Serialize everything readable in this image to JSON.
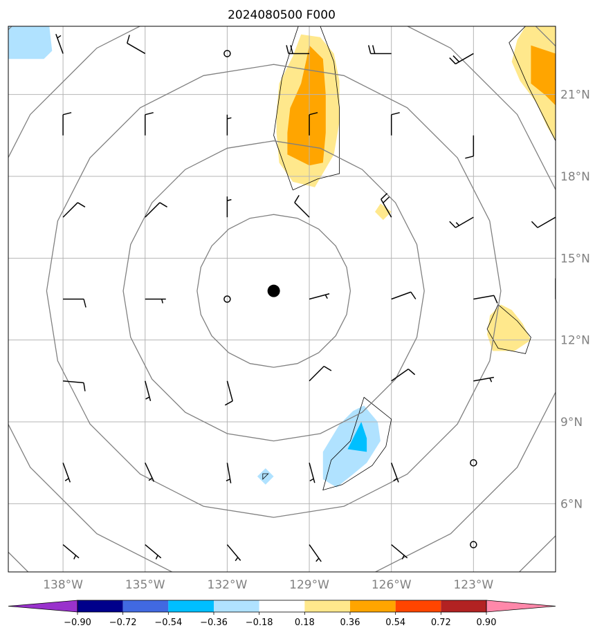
{
  "chart_data": {
    "type": "contour_map",
    "title": "2024080500 F000",
    "map": {
      "lon_range": [
        -140.0,
        -120.0
      ],
      "lat_range": [
        3.5,
        23.5
      ],
      "gridlines": true,
      "lon_ticks": [
        {
          "value": -138,
          "label": "138°W"
        },
        {
          "value": -135,
          "label": "135°W"
        },
        {
          "value": -132,
          "label": "132°W"
        },
        {
          "value": -129,
          "label": "129°W"
        },
        {
          "value": -126,
          "label": "126°W"
        },
        {
          "value": -123,
          "label": "123°W"
        }
      ],
      "lat_ticks": [
        {
          "value": 21,
          "label": "21°N"
        },
        {
          "value": 18,
          "label": "18°N"
        },
        {
          "value": 15,
          "label": "15°N"
        },
        {
          "value": 12,
          "label": "12°N"
        },
        {
          "value": 9,
          "label": "9°N"
        },
        {
          "value": 6,
          "label": "6°N"
        }
      ]
    },
    "center_marker": {
      "lon": -130.3,
      "lat": 13.8
    },
    "range_rings": {
      "center_lon": -130.3,
      "center_lat": 13.8,
      "radii_deg": [
        2.8,
        5.5,
        8.3,
        11.0,
        13.8
      ],
      "color": "#808080"
    },
    "colorbar": {
      "levels": [
        -0.9,
        -0.72,
        -0.54,
        -0.36,
        -0.18,
        0.18,
        0.36,
        0.54,
        0.72,
        0.9
      ],
      "tick_labels": [
        "−0.90",
        "−0.72",
        "−0.54",
        "−0.36",
        "−0.18",
        "0.18",
        "0.36",
        "0.54",
        "0.72",
        "0.90"
      ],
      "colors": [
        "#9932cc",
        "#00008b",
        "#4169e1",
        "#00bfff",
        "#b0e2ff",
        "#ffffff",
        "#ffe88c",
        "#ffa500",
        "#ff4500",
        "#b22222",
        "#ff88aa"
      ],
      "extend": "both"
    },
    "filled_regions": [
      {
        "color": "#b0e2ff",
        "points": [
          [
            -140,
            23.5
          ],
          [
            -138.5,
            23.5
          ],
          [
            -138.4,
            22.6
          ],
          [
            -138.7,
            22.3
          ],
          [
            -140,
            22.3
          ]
        ]
      },
      {
        "color": "#ffe88c",
        "points": [
          [
            -129.3,
            23.2
          ],
          [
            -128.6,
            23.1
          ],
          [
            -128.1,
            22.5
          ],
          [
            -127.9,
            21.5
          ],
          [
            -127.9,
            20
          ],
          [
            -128.1,
            18.8
          ],
          [
            -128.8,
            17.6
          ],
          [
            -129.6,
            17.8
          ],
          [
            -130.1,
            18.5
          ],
          [
            -130.2,
            19.6
          ],
          [
            -130.2,
            20.3
          ],
          [
            -130.1,
            21.4
          ],
          [
            -129.6,
            22.4
          ]
        ]
      },
      {
        "color": "#ffa500",
        "points": [
          [
            -129,
            22.8
          ],
          [
            -128.5,
            22.3
          ],
          [
            -128.4,
            21
          ],
          [
            -128.4,
            19.6
          ],
          [
            -128.5,
            18.5
          ],
          [
            -129,
            18.4
          ],
          [
            -129.8,
            18.8
          ],
          [
            -129.8,
            19.6
          ],
          [
            -129.7,
            20.5
          ],
          [
            -129.3,
            21.4
          ],
          [
            -129.1,
            22.3
          ]
        ]
      },
      {
        "color": "#ffe88c",
        "points": [
          [
            -121.1,
            23.5
          ],
          [
            -120,
            23.5
          ],
          [
            -120,
            19.3
          ],
          [
            -120.3,
            19.8
          ],
          [
            -120.7,
            20.7
          ],
          [
            -121.3,
            21.5
          ],
          [
            -121.6,
            22.2
          ],
          [
            -121.4,
            23
          ]
        ]
      },
      {
        "color": "#ffa500",
        "points": [
          [
            -120.9,
            22.8
          ],
          [
            -120,
            22.5
          ],
          [
            -120,
            20.6
          ],
          [
            -120.4,
            21
          ],
          [
            -120.9,
            21.4
          ]
        ]
      },
      {
        "color": "#ffe88c",
        "points": [
          [
            -126.4,
            17
          ],
          [
            -126,
            16.7
          ],
          [
            -126.3,
            16.4
          ],
          [
            -126.6,
            16.7
          ]
        ]
      },
      {
        "color": "#ffe88c",
        "points": [
          [
            -122,
            13.3
          ],
          [
            -121.6,
            13.1
          ],
          [
            -121.2,
            12.6
          ],
          [
            -120.9,
            12
          ],
          [
            -121.5,
            11.6
          ],
          [
            -122.3,
            11.6
          ],
          [
            -122.5,
            12.2
          ],
          [
            -122.4,
            12.9
          ]
        ]
      },
      {
        "color": "#b0e2ff",
        "points": [
          [
            -127,
            9.6
          ],
          [
            -126.5,
            9
          ],
          [
            -126.4,
            8.3
          ],
          [
            -126.9,
            7.5
          ],
          [
            -127.5,
            7
          ],
          [
            -128,
            6.6
          ],
          [
            -128.5,
            6.9
          ],
          [
            -128.5,
            7.9
          ],
          [
            -127.9,
            8.9
          ],
          [
            -127.4,
            9.4
          ]
        ]
      },
      {
        "color": "#00bfff",
        "points": [
          [
            -127.1,
            9
          ],
          [
            -126.9,
            8.4
          ],
          [
            -126.9,
            7.9
          ],
          [
            -127.6,
            8
          ]
        ]
      },
      {
        "color": "#b0e2ff",
        "points": [
          [
            -130.6,
            7.3
          ],
          [
            -130.3,
            7
          ],
          [
            -130.6,
            6.7
          ],
          [
            -130.9,
            7
          ]
        ]
      }
    ],
    "outline_regions": [
      {
        "points": [
          [
            -129.4,
            23.5
          ],
          [
            -128.6,
            23.5
          ],
          [
            -128.1,
            22.2
          ],
          [
            -127.9,
            20.5
          ],
          [
            -127.9,
            18.1
          ],
          [
            -128.7,
            17.9
          ],
          [
            -129.6,
            17.5
          ],
          [
            -130.3,
            19.5
          ],
          [
            -130,
            21.6
          ],
          [
            -129.6,
            22.9
          ]
        ]
      },
      {
        "points": [
          [
            -121.1,
            23.5
          ],
          [
            -120,
            23.5
          ],
          [
            -120,
            19.3
          ],
          [
            -121,
            21.3
          ],
          [
            -121.7,
            22.9
          ]
        ]
      },
      {
        "points": [
          [
            -122.1,
            13.3
          ],
          [
            -121.4,
            12.7
          ],
          [
            -120.9,
            12.1
          ],
          [
            -121.1,
            11.5
          ],
          [
            -122.1,
            11.7
          ],
          [
            -122.5,
            12.4
          ]
        ]
      },
      {
        "points": [
          [
            -127,
            9.9
          ],
          [
            -126,
            9.1
          ],
          [
            -126.2,
            8.1
          ],
          [
            -126.7,
            7.4
          ],
          [
            -127.8,
            6.7
          ],
          [
            -128.5,
            6.5
          ],
          [
            -128.2,
            7.6
          ],
          [
            -127.5,
            8.3
          ]
        ]
      },
      {
        "points": [
          [
            -130.7,
            7.1
          ],
          [
            -130.5,
            7.1
          ],
          [
            -130.7,
            6.9
          ]
        ]
      }
    ],
    "wind_barbs": [
      {
        "lon": -138,
        "lat": 22.5,
        "dir": 340,
        "speed": 5
      },
      {
        "lon": -135,
        "lat": 22.5,
        "dir": 300,
        "speed": 10
      },
      {
        "lon": -132,
        "lat": 22.5,
        "dir": null,
        "speed": 0
      },
      {
        "lon": -129,
        "lat": 22.5,
        "dir": 270,
        "speed": 20
      },
      {
        "lon": -126,
        "lat": 22.5,
        "dir": 270,
        "speed": 20
      },
      {
        "lon": -123,
        "lat": 22.5,
        "dir": 240,
        "speed": 20
      },
      {
        "lon": -138,
        "lat": 19.5,
        "dir": 0,
        "speed": 10
      },
      {
        "lon": -135,
        "lat": 19.5,
        "dir": 0,
        "speed": 10
      },
      {
        "lon": -132,
        "lat": 19.5,
        "dir": 0,
        "speed": 5
      },
      {
        "lon": -129,
        "lat": 19.5,
        "dir": 0,
        "speed": 10
      },
      {
        "lon": -126,
        "lat": 19.5,
        "dir": 0,
        "speed": 10
      },
      {
        "lon": -123,
        "lat": 19.5,
        "dir": 180,
        "speed": 10
      },
      {
        "lon": -138,
        "lat": 16.5,
        "dir": 45,
        "speed": 10
      },
      {
        "lon": -135,
        "lat": 16.5,
        "dir": 45,
        "speed": 10
      },
      {
        "lon": -132,
        "lat": 16.5,
        "dir": 0,
        "speed": 5
      },
      {
        "lon": -129,
        "lat": 16.5,
        "dir": 315,
        "speed": 10
      },
      {
        "lon": -126,
        "lat": 16.5,
        "dir": 330,
        "speed": 20
      },
      {
        "lon": -123,
        "lat": 16.5,
        "dir": 240,
        "speed": 15
      },
      {
        "lon": -120,
        "lat": 16.5,
        "dir": 240,
        "speed": 10
      },
      {
        "lon": -138,
        "lat": 13.5,
        "dir": 90,
        "speed": 10
      },
      {
        "lon": -135,
        "lat": 13.5,
        "dir": 90,
        "speed": 5
      },
      {
        "lon": -132,
        "lat": 13.5,
        "dir": null,
        "speed": 0
      },
      {
        "lon": -129,
        "lat": 13.5,
        "dir": 75,
        "speed": 5
      },
      {
        "lon": -126,
        "lat": 13.5,
        "dir": 70,
        "speed": 10
      },
      {
        "lon": -123,
        "lat": 13.5,
        "dir": 80,
        "speed": 10
      },
      {
        "lon": -120,
        "lat": 13.5,
        "dir": 0,
        "speed": 10
      },
      {
        "lon": -138,
        "lat": 10.5,
        "dir": 95,
        "speed": 10
      },
      {
        "lon": -135,
        "lat": 10.5,
        "dir": 165,
        "speed": 5
      },
      {
        "lon": -132,
        "lat": 10.5,
        "dir": 165,
        "speed": 10
      },
      {
        "lon": -129,
        "lat": 10.5,
        "dir": 45,
        "speed": 10
      },
      {
        "lon": -126,
        "lat": 10.5,
        "dir": 55,
        "speed": 10
      },
      {
        "lon": -123,
        "lat": 10.5,
        "dir": 80,
        "speed": 5
      },
      {
        "lon": -138,
        "lat": 7.5,
        "dir": 160,
        "speed": 5
      },
      {
        "lon": -135,
        "lat": 7.5,
        "dir": 155,
        "speed": 5
      },
      {
        "lon": -132,
        "lat": 7.5,
        "dir": 170,
        "speed": 5
      },
      {
        "lon": -129,
        "lat": 7.5,
        "dir": 165,
        "speed": 5
      },
      {
        "lon": -126,
        "lat": 7.5,
        "dir": 160,
        "speed": 5
      },
      {
        "lon": -123,
        "lat": 7.5,
        "dir": null,
        "speed": 0
      },
      {
        "lon": -138,
        "lat": 4.5,
        "dir": 130,
        "speed": 5
      },
      {
        "lon": -135,
        "lat": 4.5,
        "dir": 130,
        "speed": 5
      },
      {
        "lon": -132,
        "lat": 4.5,
        "dir": 140,
        "speed": 5
      },
      {
        "lon": -129,
        "lat": 4.5,
        "dir": 145,
        "speed": 5
      },
      {
        "lon": -126,
        "lat": 4.5,
        "dir": 130,
        "speed": 5
      },
      {
        "lon": -123,
        "lat": 4.5,
        "dir": null,
        "speed": 0
      }
    ]
  }
}
